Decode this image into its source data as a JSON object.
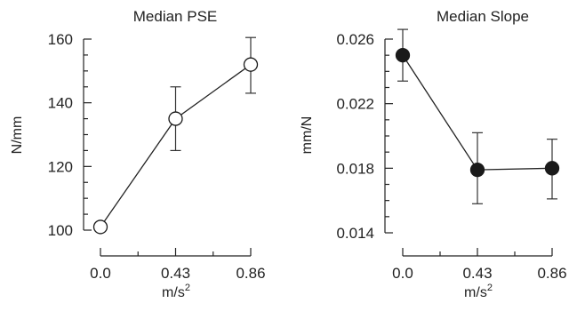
{
  "chart_data": [
    {
      "type": "line",
      "title": "Median PSE",
      "xlabel": "m/s",
      "xlabel_superscript": "2",
      "ylabel": "N/mm",
      "categories": [
        "0.0",
        "0.43",
        "0.86"
      ],
      "x": [
        0.0,
        0.43,
        0.86
      ],
      "yticks": [
        "100",
        "120",
        "140",
        "160"
      ],
      "ytick_values": [
        100,
        120,
        140,
        160
      ],
      "ylim": [
        100,
        160
      ],
      "grid": false,
      "marker": "open-circle",
      "series": [
        {
          "values": [
            101,
            135,
            152
          ],
          "error_low": [
            100,
            125,
            143
          ],
          "error_high": [
            102,
            145,
            160.5
          ]
        }
      ]
    },
    {
      "type": "line",
      "title": "Median Slope",
      "xlabel": "m/s",
      "xlabel_superscript": "2",
      "ylabel": "mm/N",
      "categories": [
        "0.0",
        "0.43",
        "0.86"
      ],
      "x": [
        0.0,
        0.43,
        0.86
      ],
      "yticks": [
        "0.014",
        "0.018",
        "0.022",
        "0.026"
      ],
      "ytick_values": [
        0.014,
        0.018,
        0.022,
        0.026
      ],
      "ylim": [
        0.014,
        0.026
      ],
      "grid": false,
      "marker": "filled-circle",
      "series": [
        {
          "values": [
            0.025,
            0.0179,
            0.018
          ],
          "error_low": [
            0.0234,
            0.0158,
            0.0161
          ],
          "error_high": [
            0.0266,
            0.0202,
            0.0198
          ]
        }
      ]
    }
  ]
}
